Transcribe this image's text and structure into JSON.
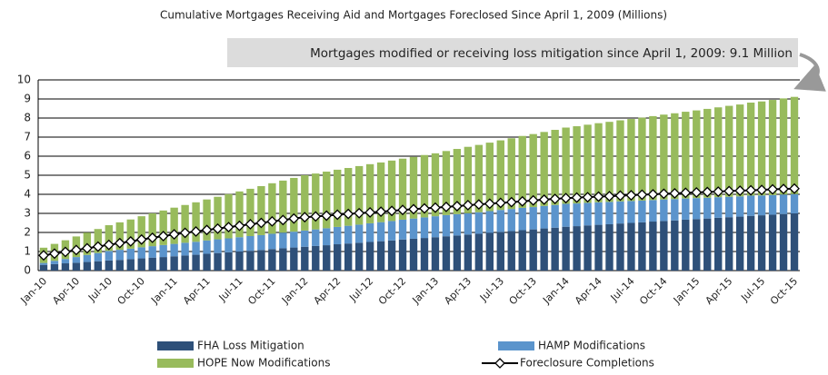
{
  "chart_data": {
    "type": "bar",
    "stacked": true,
    "title": "Cumulative Mortgages Receiving Aid and Mortgages Foreclosed Since April 1, 2009 (Millions)",
    "annotation": "Mortgages modified or receiving loss mitigation since  April 1, 2009: 9.1 Million",
    "categories": [
      "Jan-10",
      null,
      null,
      "Apr-10",
      null,
      null,
      "Jul-10",
      null,
      null,
      "Oct-10",
      null,
      null,
      "Jan-11",
      null,
      null,
      "Apr-11",
      null,
      null,
      "Jul-11",
      null,
      null,
      "Oct-11",
      null,
      null,
      "Jan-12",
      null,
      null,
      "Apr-12",
      null,
      null,
      "Jul-12",
      null,
      null,
      "Oct-12",
      null,
      null,
      "Jan-13",
      null,
      null,
      "Apr-13",
      null,
      null,
      "Jul-13",
      null,
      null,
      "Oct-13",
      null,
      null,
      "Jan-14",
      null,
      null,
      "Apr-14",
      null,
      null,
      "Jul-14",
      null,
      null,
      "Oct-14",
      null,
      null,
      "Jan-15",
      null,
      null,
      "Apr-15",
      null,
      null,
      "Jul-15",
      null,
      null,
      "Oct-15"
    ],
    "series": [
      {
        "name": "FHA Loss Mitigation",
        "color": "#2e5079",
        "values": [
          0.3,
          0.34,
          0.38,
          0.41,
          0.45,
          0.49,
          0.53,
          0.56,
          0.6,
          0.64,
          0.68,
          0.71,
          0.75,
          0.79,
          0.83,
          0.88,
          0.92,
          0.96,
          1.0,
          1.04,
          1.08,
          1.13,
          1.17,
          1.21,
          1.25,
          1.29,
          1.33,
          1.38,
          1.42,
          1.46,
          1.5,
          1.54,
          1.58,
          1.63,
          1.67,
          1.71,
          1.75,
          1.8,
          1.84,
          1.89,
          1.93,
          1.98,
          2.03,
          2.07,
          2.12,
          2.16,
          2.21,
          2.25,
          2.3,
          2.33,
          2.37,
          2.4,
          2.43,
          2.47,
          2.5,
          2.53,
          2.57,
          2.6,
          2.63,
          2.67,
          2.7,
          2.73,
          2.77,
          2.8,
          2.83,
          2.87,
          2.9,
          2.93,
          2.97,
          3.0
        ]
      },
      {
        "name": "HAMP Modifications",
        "color": "#5b94cc",
        "values": [
          0.1,
          0.17,
          0.23,
          0.3,
          0.37,
          0.43,
          0.5,
          0.53,
          0.55,
          0.58,
          0.6,
          0.63,
          0.65,
          0.67,
          0.68,
          0.7,
          0.72,
          0.73,
          0.75,
          0.77,
          0.78,
          0.8,
          0.82,
          0.83,
          0.85,
          0.87,
          0.89,
          0.91,
          0.93,
          0.95,
          0.98,
          1.0,
          1.02,
          1.04,
          1.06,
          1.08,
          1.1,
          1.11,
          1.12,
          1.12,
          1.13,
          1.14,
          1.15,
          1.16,
          1.17,
          1.17,
          1.18,
          1.19,
          1.2,
          1.19,
          1.18,
          1.18,
          1.17,
          1.16,
          1.15,
          1.14,
          1.13,
          1.13,
          1.12,
          1.11,
          1.1,
          1.09,
          1.08,
          1.07,
          1.06,
          1.06,
          1.04,
          1.03,
          1.02,
          1.01
        ]
      },
      {
        "name": "HOPE Now Modifications",
        "color": "#98bb5c",
        "values": [
          0.8,
          0.89,
          0.98,
          1.08,
          1.17,
          1.26,
          1.35,
          1.44,
          1.53,
          1.63,
          1.72,
          1.81,
          1.9,
          1.98,
          2.07,
          2.15,
          2.23,
          2.32,
          2.4,
          2.48,
          2.57,
          2.65,
          2.73,
          2.82,
          2.9,
          2.93,
          2.97,
          3.0,
          3.03,
          3.07,
          3.1,
          3.13,
          3.17,
          3.2,
          3.23,
          3.27,
          3.3,
          3.36,
          3.42,
          3.48,
          3.53,
          3.59,
          3.65,
          3.71,
          3.77,
          3.83,
          3.88,
          3.94,
          4.0,
          4.05,
          4.1,
          4.15,
          4.2,
          4.25,
          4.3,
          4.35,
          4.4,
          4.45,
          4.5,
          4.55,
          4.6,
          4.66,
          4.71,
          4.77,
          4.82,
          4.88,
          4.93,
          4.99,
          5.04,
          5.1
        ]
      },
      {
        "name": "Foreclosure Completions",
        "type": "line",
        "color": "#000000",
        "values": [
          0.8,
          0.89,
          0.98,
          1.08,
          1.17,
          1.26,
          1.35,
          1.44,
          1.53,
          1.63,
          1.72,
          1.81,
          1.9,
          1.98,
          2.05,
          2.13,
          2.2,
          2.28,
          2.35,
          2.43,
          2.5,
          2.58,
          2.65,
          2.73,
          2.8,
          2.84,
          2.88,
          2.93,
          2.97,
          3.01,
          3.05,
          3.09,
          3.13,
          3.18,
          3.22,
          3.26,
          3.3,
          3.34,
          3.38,
          3.43,
          3.47,
          3.51,
          3.55,
          3.59,
          3.63,
          3.68,
          3.72,
          3.76,
          3.8,
          3.83,
          3.85,
          3.88,
          3.9,
          3.93,
          3.95,
          3.98,
          4.0,
          4.03,
          4.05,
          4.08,
          4.1,
          4.12,
          4.14,
          4.17,
          4.19,
          4.21,
          4.23,
          4.26,
          4.28,
          4.3
        ]
      }
    ],
    "ylim": [
      0,
      10
    ],
    "yticks": [
      0,
      1,
      2,
      3,
      4,
      5,
      6,
      7,
      8,
      9,
      10
    ],
    "grid": true
  }
}
